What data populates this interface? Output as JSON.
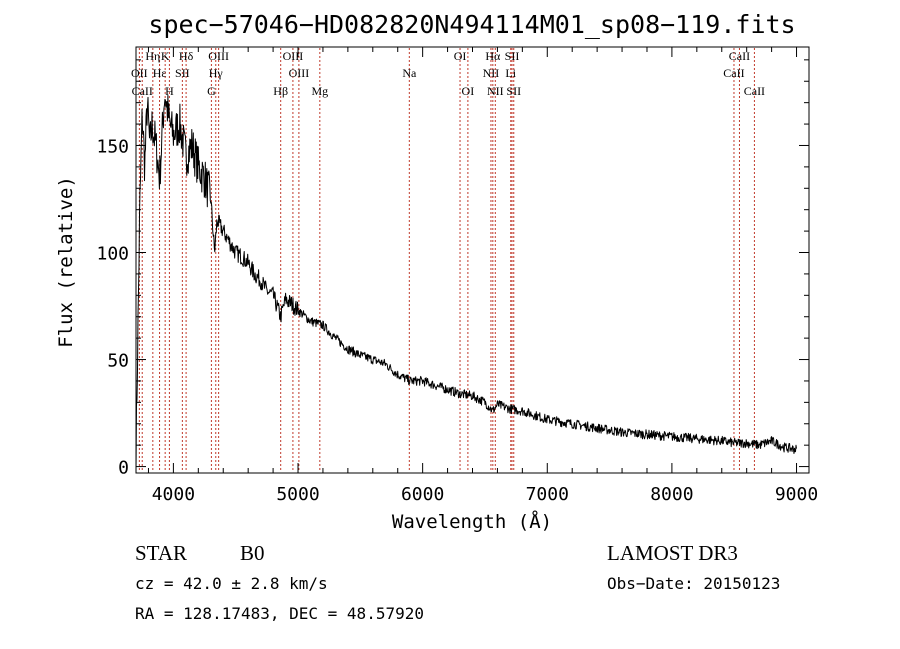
{
  "chart_data": {
    "type": "line",
    "title": "spec−57046−HD082820N494114M01_sp08−119.fits",
    "xlabel": "Wavelength (Å)",
    "ylabel": "Flux (relative)",
    "xlim": [
      3700,
      9100
    ],
    "ylim": [
      -3,
      196
    ],
    "xticks": [
      4000,
      5000,
      6000,
      7000,
      8000,
      9000
    ],
    "yticks": [
      0,
      50,
      100,
      150
    ],
    "spectrum": {
      "name": "flux",
      "x": [
        3700,
        3730,
        3750,
        3770,
        3790,
        3810,
        3830,
        3860,
        3890,
        3930,
        3970,
        4000,
        4050,
        4100,
        4150,
        4200,
        4250,
        4300,
        4330,
        4350,
        4400,
        4450,
        4500,
        4550,
        4600,
        4650,
        4700,
        4750,
        4800,
        4860,
        4900,
        4950,
        5000,
        5100,
        5200,
        5300,
        5400,
        5500,
        5600,
        5700,
        5800,
        5900,
        6000,
        6100,
        6200,
        6300,
        6400,
        6500,
        6563,
        6600,
        6700,
        6800,
        6900,
        7000,
        7200,
        7400,
        7600,
        7800,
        8000,
        8200,
        8400,
        8500,
        8600,
        8700,
        8800,
        8900,
        9000
      ],
      "y": [
        5,
        120,
        165,
        140,
        170,
        150,
        160,
        150,
        135,
        175,
        160,
        155,
        160,
        145,
        150,
        140,
        135,
        125,
        100,
        115,
        110,
        105,
        100,
        98,
        95,
        90,
        87,
        82,
        80,
        70,
        78,
        76,
        73,
        68,
        66,
        60,
        55,
        52,
        50,
        48,
        43,
        40,
        40,
        38,
        36,
        34,
        33,
        30,
        26,
        29,
        27,
        26,
        24,
        22,
        20,
        18,
        16,
        15,
        14,
        13,
        12,
        11,
        11,
        10,
        12,
        9,
        8
      ]
    },
    "lines": [
      {
        "label": "Hη",
        "x": 3835,
        "row": 1
      },
      {
        "label": "K",
        "x": 3934,
        "row": 1
      },
      {
        "label": "Hδ",
        "x": 4102,
        "row": 1
      },
      {
        "label": "OIII",
        "x": 4363,
        "row": 1
      },
      {
        "label": "OIII",
        "x": 4959,
        "row": 1
      },
      {
        "label": "OI",
        "x": 6300,
        "row": 1
      },
      {
        "label": "Hα",
        "x": 6563,
        "row": 1
      },
      {
        "label": "SII",
        "x": 6717,
        "row": 1
      },
      {
        "label": "CaII",
        "x": 8542,
        "row": 1
      },
      {
        "label": "OII",
        "x": 3727,
        "row": 2
      },
      {
        "label": "Hε",
        "x": 3889,
        "row": 2
      },
      {
        "label": "SII",
        "x": 4072,
        "row": 2
      },
      {
        "label": "Hγ",
        "x": 4340,
        "row": 2
      },
      {
        "label": "OIII",
        "x": 5007,
        "row": 2
      },
      {
        "label": "Na",
        "x": 5893,
        "row": 2
      },
      {
        "label": "NII",
        "x": 6548,
        "row": 2
      },
      {
        "label": "Li",
        "x": 6707,
        "row": 2
      },
      {
        "label": "CaII",
        "x": 8498,
        "row": 2
      },
      {
        "label": "CaII",
        "x": 3750,
        "row": 3
      },
      {
        "label": "H",
        "x": 3968,
        "row": 3
      },
      {
        "label": "G",
        "x": 4305,
        "row": 3
      },
      {
        "label": "Hβ",
        "x": 4861,
        "row": 3
      },
      {
        "label": "Mg",
        "x": 5175,
        "row": 3
      },
      {
        "label": "OI",
        "x": 6363,
        "row": 3
      },
      {
        "label": "NII",
        "x": 6583,
        "row": 3
      },
      {
        "label": "SII",
        "x": 6731,
        "row": 3
      },
      {
        "label": "CaII",
        "x": 8662,
        "row": 3
      }
    ]
  },
  "info": {
    "class": "STAR",
    "subclass": "B0",
    "survey": "LAMOST DR3",
    "cz": "cz = 42.0 ± 2.8 km/s",
    "obs_date": "Obs−Date: 20150123",
    "radec": "RA = 128.17483, DEC =  48.57920"
  }
}
